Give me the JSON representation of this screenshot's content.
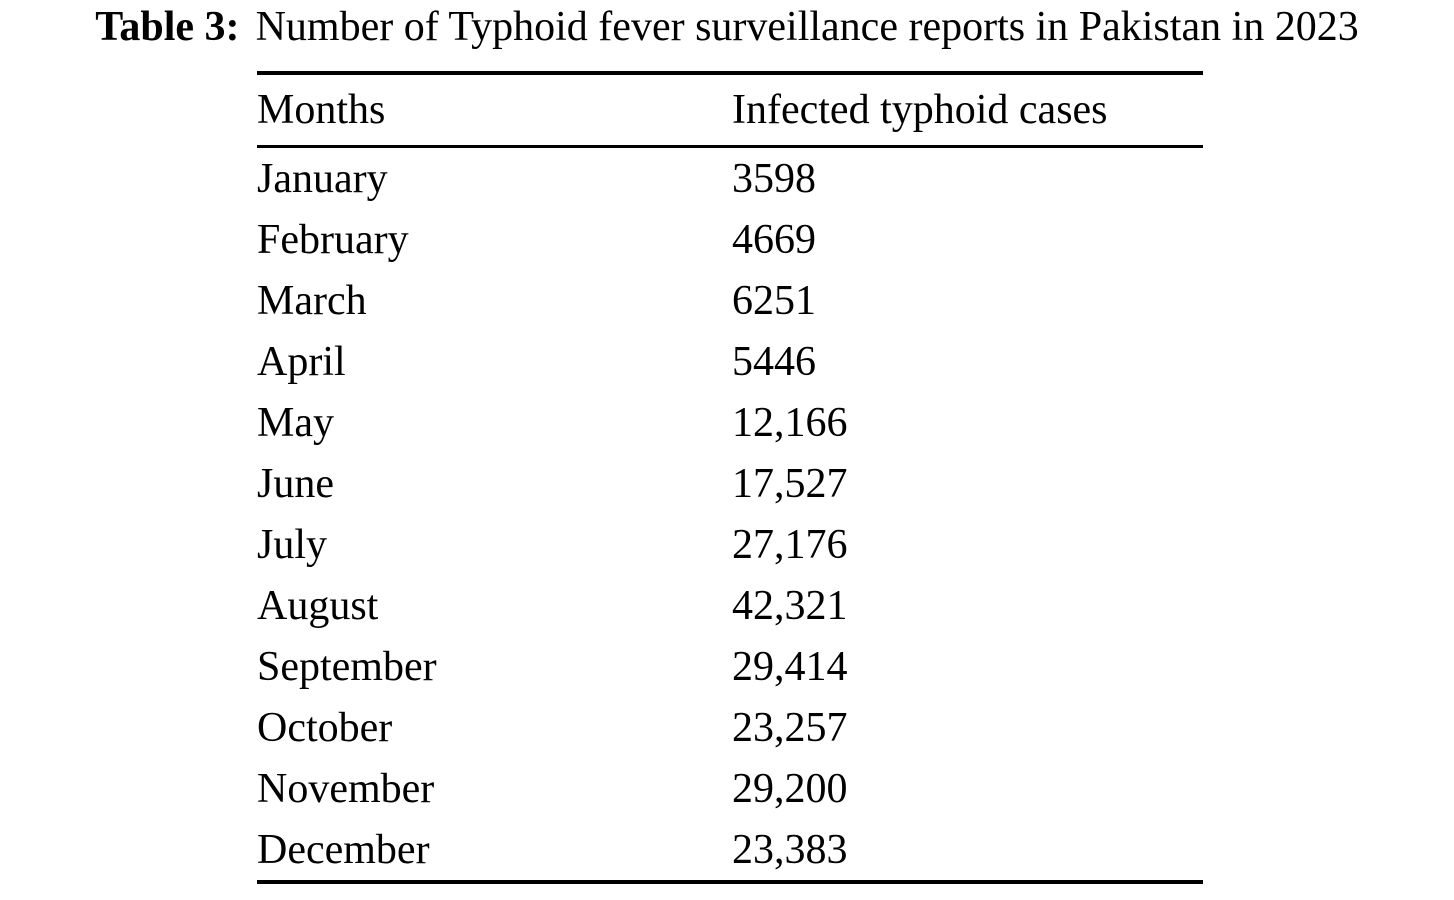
{
  "colors": {
    "background": "#ffffff",
    "text": "#000000",
    "rule": "#000000"
  },
  "title": {
    "label": "Table 3:",
    "text": "Number of Typhoid fever surveillance reports in Pakistan in 2023"
  },
  "table": {
    "columns": [
      "Months",
      "Infected typhoid cases"
    ],
    "rows": [
      {
        "month": "January",
        "cases": "3598"
      },
      {
        "month": "February",
        "cases": "4669"
      },
      {
        "month": "March",
        "cases": "6251"
      },
      {
        "month": "April",
        "cases": "5446"
      },
      {
        "month": "May",
        "cases": "12,166"
      },
      {
        "month": "June",
        "cases": "17,527"
      },
      {
        "month": "July",
        "cases": "27,176"
      },
      {
        "month": "August",
        "cases": "42,321"
      },
      {
        "month": "September",
        "cases": "29,414"
      },
      {
        "month": "October",
        "cases": "23,257"
      },
      {
        "month": "November",
        "cases": "29,200"
      },
      {
        "month": "December",
        "cases": "23,383"
      }
    ]
  },
  "chart_data": {
    "type": "table",
    "title": "Table 3: Number of Typhoid fever surveillance reports in Pakistan in 2023",
    "columns": [
      "Months",
      "Infected typhoid cases"
    ],
    "categories": [
      "January",
      "February",
      "March",
      "April",
      "May",
      "June",
      "July",
      "August",
      "September",
      "October",
      "November",
      "December"
    ],
    "values": [
      3598,
      4669,
      6251,
      5446,
      12166,
      17527,
      27176,
      42321,
      29414,
      23257,
      29200,
      23383
    ]
  }
}
